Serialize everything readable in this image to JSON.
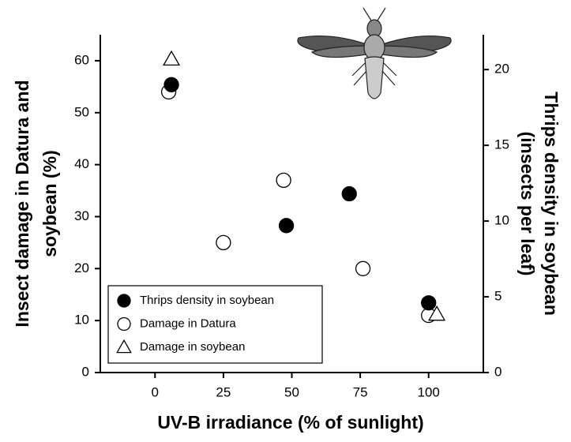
{
  "chart_data": {
    "type": "scatter",
    "x_label": "UV-B irradiance (% of sunlight)",
    "y_label": [
      "Insect damage in Datura and",
      "soybean (%)"
    ],
    "y2_label": [
      "Thrips density in soybean",
      "(insects per leaf)"
    ],
    "xlim": [
      -20,
      120
    ],
    "xticks": [
      0,
      25,
      50,
      75,
      100
    ],
    "ylim": [
      0,
      65
    ],
    "yticks": [
      0,
      10,
      20,
      30,
      40,
      50,
      60
    ],
    "y2lim": [
      0,
      22.3
    ],
    "y2ticks": [
      0,
      5,
      10,
      15,
      20
    ],
    "legend": "lower left",
    "series": [
      {
        "name": "Thrips density in soybean",
        "color": "#000000",
        "marker": "filled-circle",
        "axis": "y2",
        "x": [
          6,
          48,
          71,
          100
        ],
        "values": [
          19.0,
          9.7,
          11.8,
          4.6
        ]
      },
      {
        "name": "Damage in Datura",
        "color": "#000000",
        "marker": "open-circle",
        "x": [
          5,
          25,
          47,
          76,
          100
        ],
        "values": [
          54,
          25,
          37,
          20,
          11
        ]
      },
      {
        "name": "Damage in soybean",
        "color": "#000000",
        "marker": "triangle",
        "x": [
          6,
          103
        ],
        "values": [
          60.3,
          11.2
        ]
      }
    ]
  }
}
